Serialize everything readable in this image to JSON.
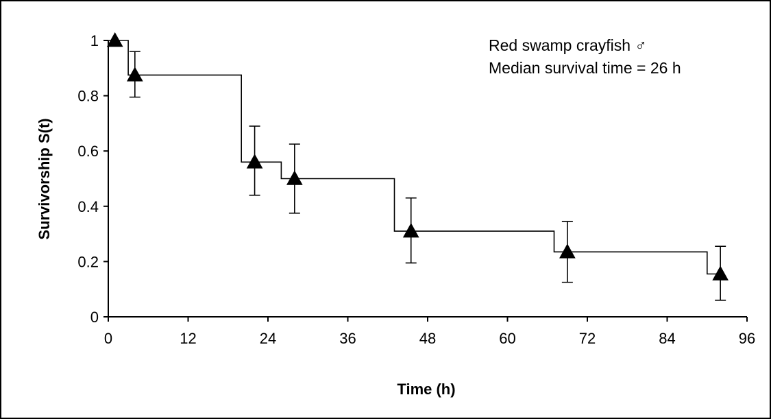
{
  "chart_data": {
    "type": "line",
    "xlabel": "Time (h)",
    "ylabel": "Survivorship S(t)",
    "xlim": [
      0,
      96
    ],
    "ylim": [
      0,
      1
    ],
    "x_ticks": [
      0,
      12,
      24,
      36,
      48,
      60,
      72,
      84,
      96
    ],
    "y_ticks": [
      0,
      0.2,
      0.4,
      0.6,
      0.8,
      1
    ],
    "y_tick_labels": [
      "0",
      "0.2",
      "0.4",
      "0.6",
      "0.8",
      "1"
    ],
    "grid": false,
    "annotations": [
      "Red swamp crayfish ♂",
      "Median survival time = 26 h"
    ],
    "step_curve": [
      [
        0,
        1
      ],
      [
        3,
        1
      ],
      [
        3,
        0.875
      ],
      [
        20,
        0.875
      ],
      [
        20,
        0.56
      ],
      [
        26,
        0.56
      ],
      [
        26,
        0.5
      ],
      [
        43,
        0.5
      ],
      [
        43,
        0.31
      ],
      [
        67,
        0.31
      ],
      [
        67,
        0.235
      ],
      [
        90,
        0.235
      ],
      [
        90,
        0.155
      ],
      [
        92,
        0.155
      ]
    ],
    "points": [
      {
        "x": 1,
        "y": 1.0,
        "err_low": 1.0,
        "err_high": 1.0
      },
      {
        "x": 4,
        "y": 0.875,
        "err_low": 0.795,
        "err_high": 0.96
      },
      {
        "x": 22,
        "y": 0.56,
        "err_low": 0.44,
        "err_high": 0.69
      },
      {
        "x": 28,
        "y": 0.5,
        "err_low": 0.375,
        "err_high": 0.625
      },
      {
        "x": 45.5,
        "y": 0.31,
        "err_low": 0.195,
        "err_high": 0.43
      },
      {
        "x": 69,
        "y": 0.235,
        "err_low": 0.125,
        "err_high": 0.345
      },
      {
        "x": 92,
        "y": 0.155,
        "err_low": 0.06,
        "err_high": 0.255
      }
    ]
  }
}
